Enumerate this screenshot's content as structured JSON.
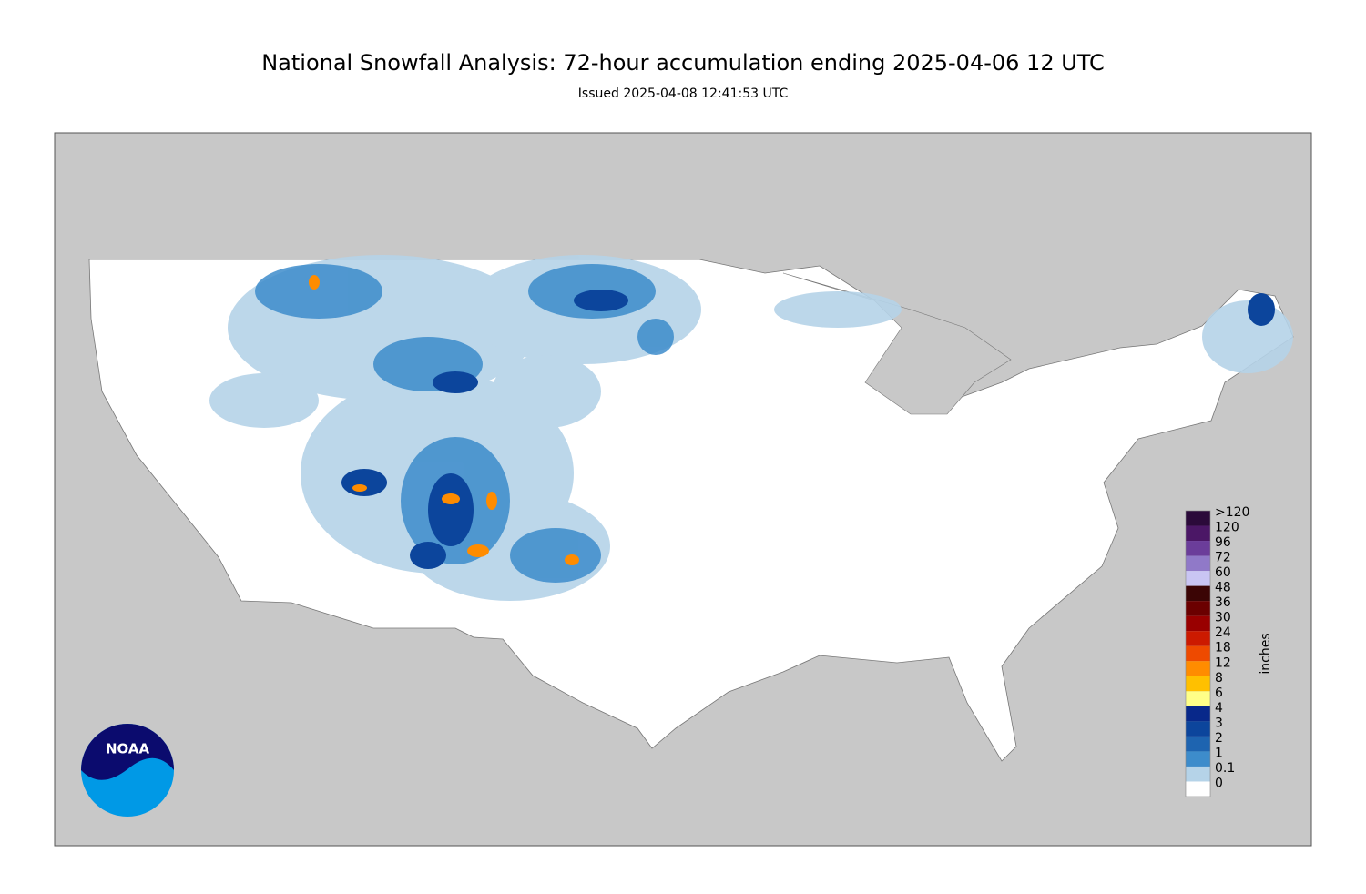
{
  "header": {
    "title": "National Snowfall Analysis: 72-hour accumulation ending 2025-04-06 12 UTC",
    "subtitle": "Issued 2025-04-08 12:41:53 UTC"
  },
  "legend": {
    "unit": "inches",
    "bins": [
      {
        "label": ">120",
        "color": "#2b0a3a"
      },
      {
        "label": "120",
        "color": "#4b1766"
      },
      {
        "label": "96",
        "color": "#6b3d9a"
      },
      {
        "label": "72",
        "color": "#9079c8"
      },
      {
        "label": "60",
        "color": "#c9c5f3"
      },
      {
        "label": "48",
        "color": "#3b0505"
      },
      {
        "label": "36",
        "color": "#6b0000"
      },
      {
        "label": "30",
        "color": "#990000"
      },
      {
        "label": "24",
        "color": "#cc1a00"
      },
      {
        "label": "18",
        "color": "#ee4a00"
      },
      {
        "label": "12",
        "color": "#ff8c00"
      },
      {
        "label": "8",
        "color": "#ffc000"
      },
      {
        "label": "6",
        "color": "#ffff88"
      },
      {
        "label": "4",
        "color": "#08288a"
      },
      {
        "label": "3",
        "color": "#0c459c"
      },
      {
        "label": "2",
        "color": "#1e64b0"
      },
      {
        "label": "1",
        "color": "#3d8ccb"
      },
      {
        "label": "0.1",
        "color": "#b5d3e8"
      },
      {
        "label": "0",
        "color": "#ffffff"
      }
    ]
  },
  "logo": {
    "text": "NOAA"
  }
}
